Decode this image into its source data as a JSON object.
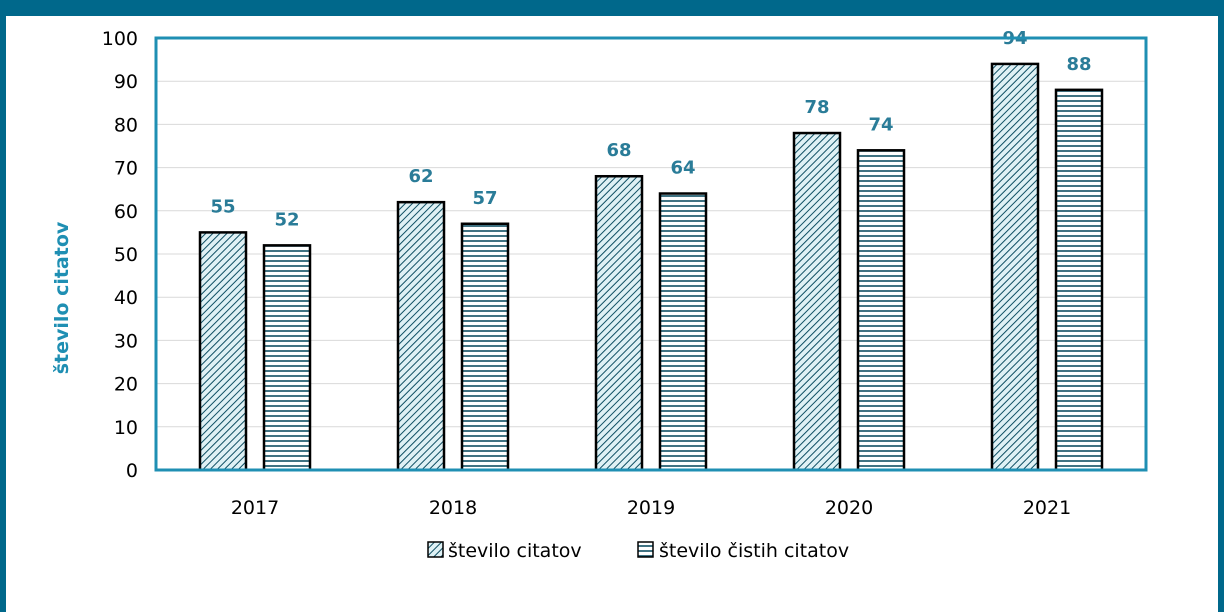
{
  "chart_data": {
    "type": "bar",
    "title": "",
    "xlabel": "",
    "ylabel": "število citatov",
    "categories": [
      "2017",
      "2018",
      "2019",
      "2020",
      "2021"
    ],
    "series": [
      {
        "name": "število citatov",
        "values": [
          55,
          62,
          68,
          78,
          94
        ],
        "pattern": "diagonal-hatch"
      },
      {
        "name": "število čistih citatov",
        "values": [
          52,
          57,
          64,
          74,
          88
        ],
        "pattern": "horizontal-hatch"
      }
    ],
    "ylim": [
      0,
      100
    ],
    "yticks": [
      0,
      10,
      20,
      30,
      40,
      50,
      60,
      70,
      80,
      90,
      100
    ],
    "grid": true,
    "legend_position": "bottom",
    "colors": {
      "frame": "#00688b",
      "plot_border": "#1f8fb3",
      "bar_fill": "#dff1f5",
      "hatch": "#0f4f63",
      "label": "#2a7c98",
      "ylabel": "#1f8fb3",
      "grid": "#d9d9d9"
    }
  }
}
